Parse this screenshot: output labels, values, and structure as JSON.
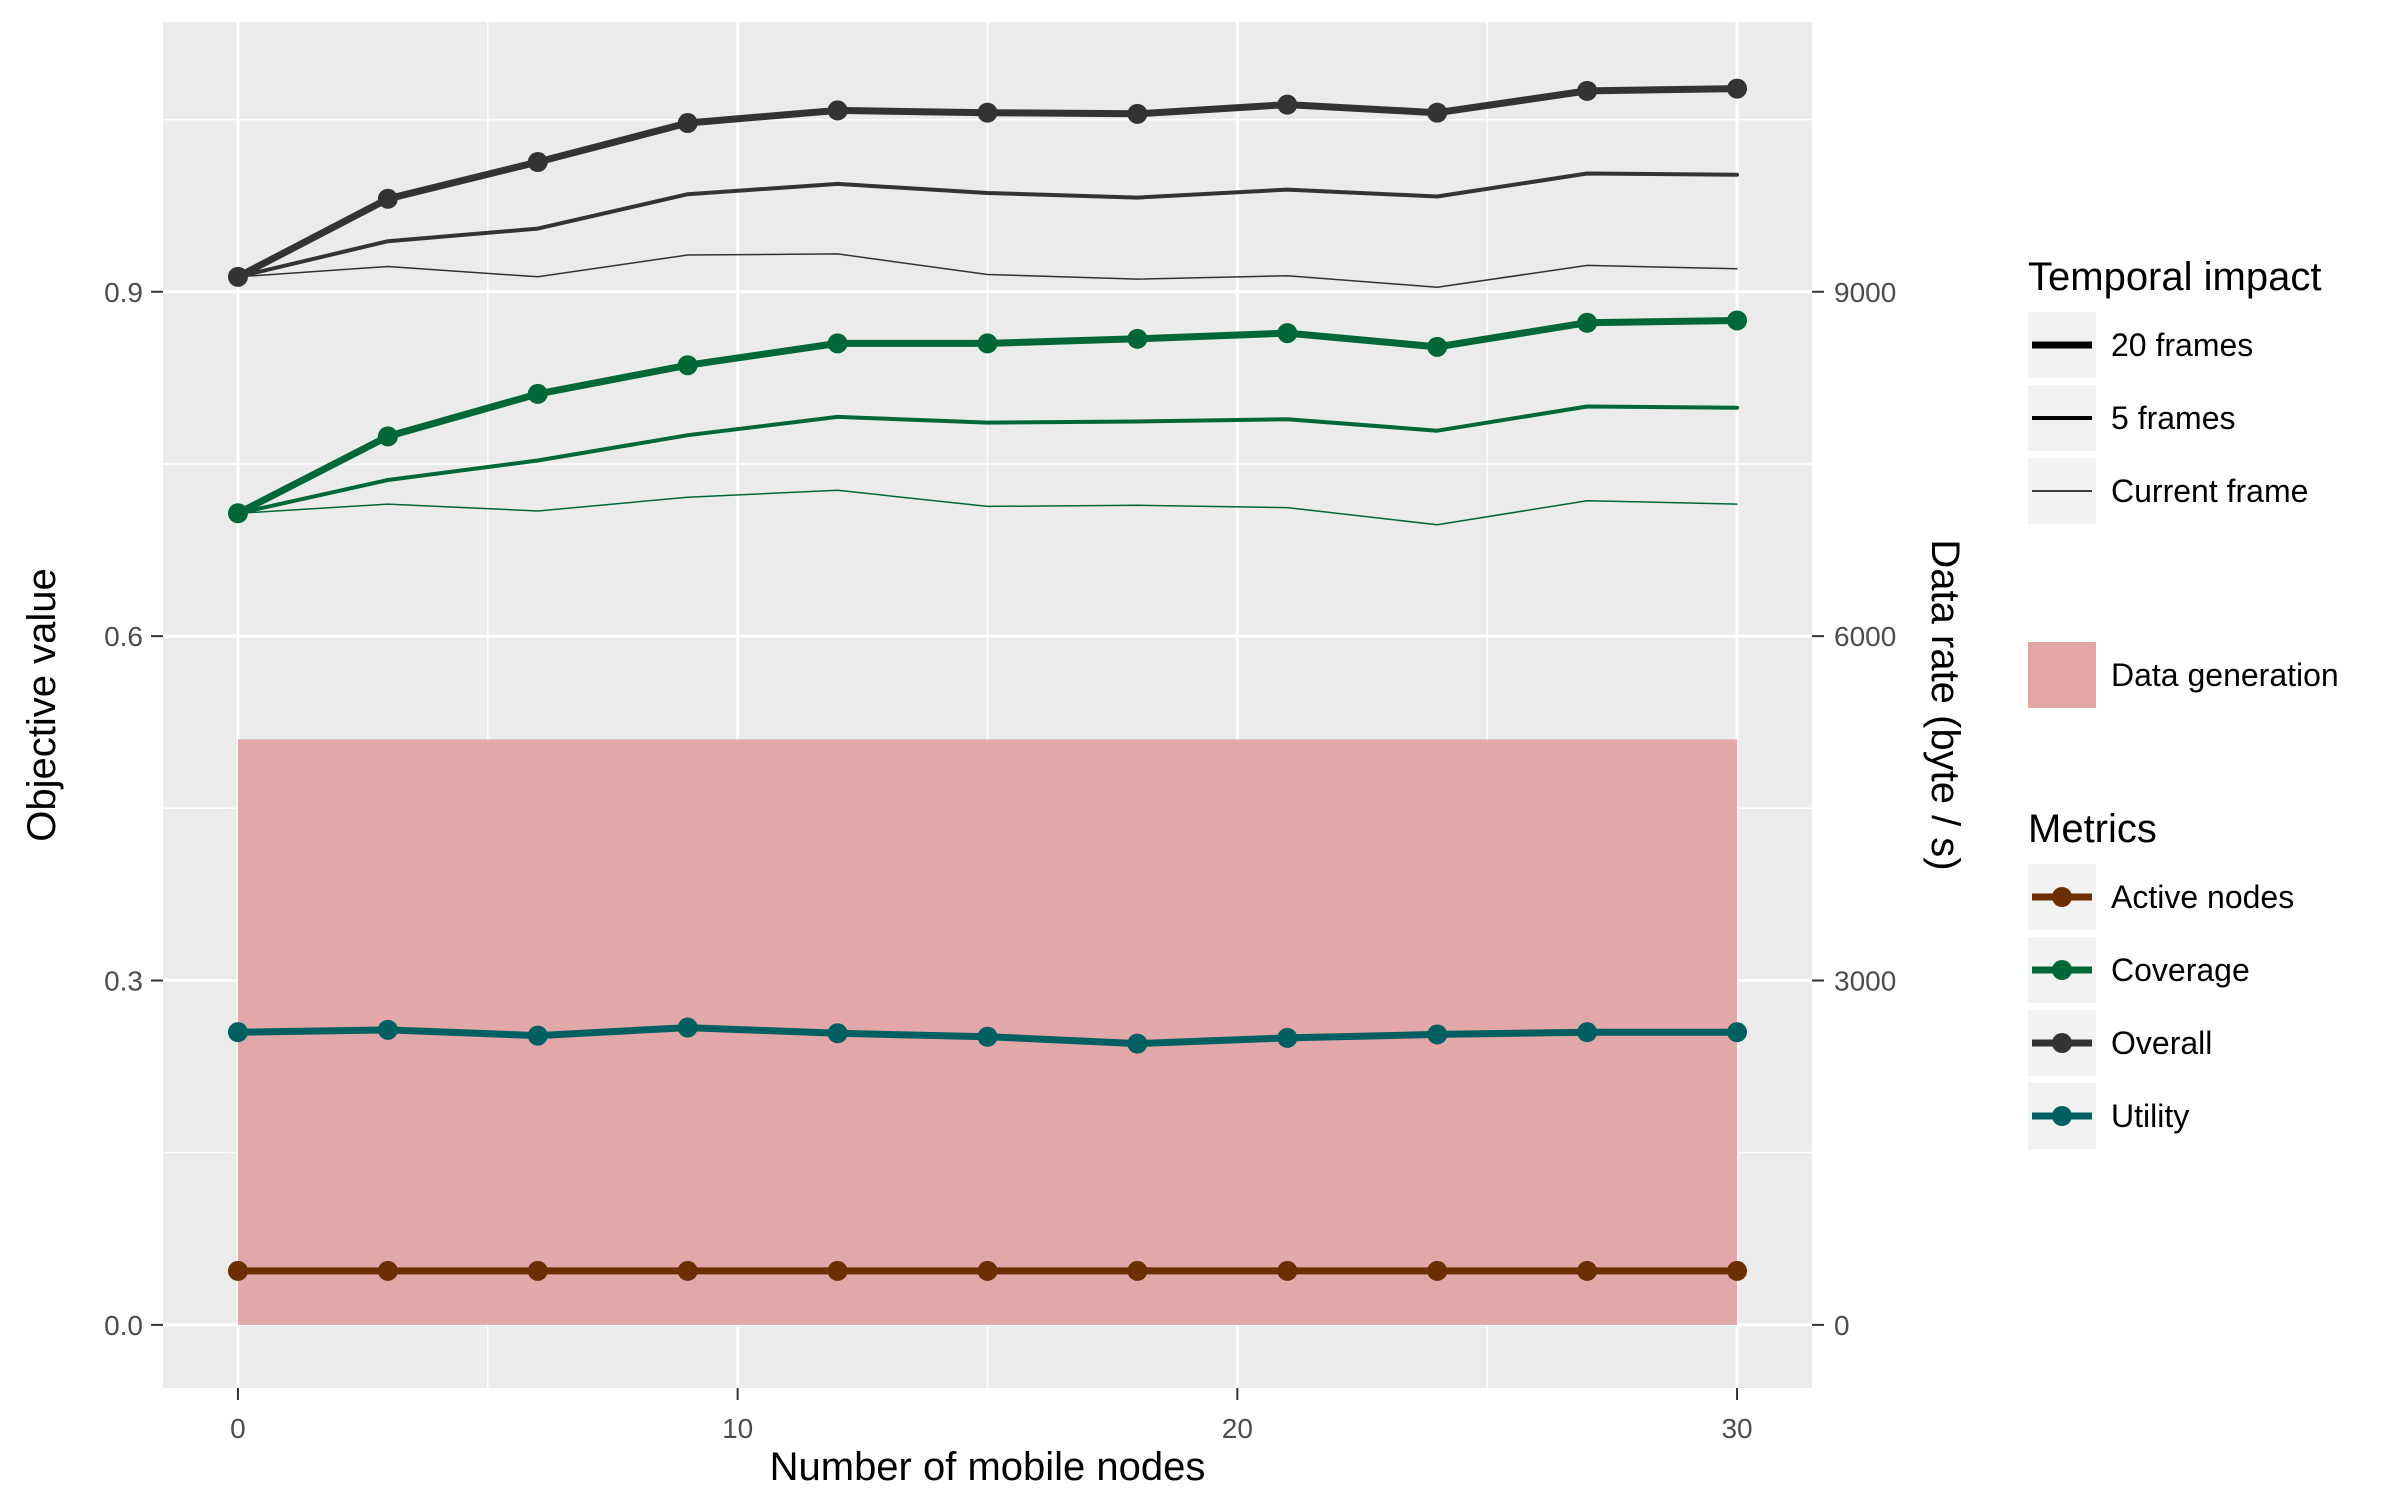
{
  "chart_data": {
    "type": "line",
    "xlabel": "Number of mobile nodes",
    "ylabel": "Objective value",
    "y2label": "Data rate (byte / s)",
    "xlim": [
      -1.5,
      31.5
    ],
    "ylim": [
      -0.055,
      1.135
    ],
    "y2lim": [
      -550,
      11350
    ],
    "x_ticks": [
      0,
      10,
      20,
      30
    ],
    "x_tick_labels": [
      "0",
      "10",
      "20",
      "30"
    ],
    "y_ticks": [
      0.0,
      0.3,
      0.6,
      0.9
    ],
    "y_tick_labels": [
      "0.0",
      "0.3",
      "0.6",
      "0.9"
    ],
    "y2_ticks": [
      0,
      3000,
      6000,
      9000
    ],
    "y2_tick_labels": [
      "0",
      "3000",
      "6000",
      "9000"
    ],
    "grid": true,
    "x": [
      0,
      3,
      6,
      9,
      12,
      15,
      18,
      21,
      24,
      27,
      30
    ],
    "data_generation": {
      "label": "Data generation",
      "color": "#e2a4a5",
      "x_range": [
        0,
        30
      ],
      "value": 5100
    },
    "series": [
      {
        "metric": "Overall",
        "impact": "20 frames",
        "color": "#333333",
        "values": [
          0.913,
          0.981,
          1.013,
          1.047,
          1.058,
          1.056,
          1.055,
          1.063,
          1.056,
          1.075,
          1.077
        ]
      },
      {
        "metric": "Overall",
        "impact": "5 frames",
        "color": "#333333",
        "values": [
          0.913,
          0.944,
          0.955,
          0.985,
          0.994,
          0.986,
          0.982,
          0.989,
          0.983,
          1.003,
          1.002
        ]
      },
      {
        "metric": "Overall",
        "impact": "Current frame",
        "color": "#333333",
        "values": [
          0.913,
          0.922,
          0.913,
          0.932,
          0.933,
          0.915,
          0.911,
          0.914,
          0.904,
          0.923,
          0.92
        ]
      },
      {
        "metric": "Coverage",
        "impact": "20 frames",
        "color": "#006837",
        "values": [
          0.707,
          0.774,
          0.811,
          0.836,
          0.855,
          0.855,
          0.859,
          0.864,
          0.852,
          0.873,
          0.875
        ]
      },
      {
        "metric": "Coverage",
        "impact": "5 frames",
        "color": "#006837",
        "values": [
          0.707,
          0.736,
          0.753,
          0.775,
          0.791,
          0.786,
          0.787,
          0.789,
          0.779,
          0.8,
          0.799
        ]
      },
      {
        "metric": "Coverage",
        "impact": "Current frame",
        "color": "#006837",
        "values": [
          0.707,
          0.715,
          0.709,
          0.721,
          0.727,
          0.713,
          0.714,
          0.712,
          0.697,
          0.718,
          0.715
        ]
      },
      {
        "metric": "Utility",
        "impact": "20 frames",
        "color": "#005f60",
        "values": [
          0.255,
          0.257,
          0.252,
          0.259,
          0.254,
          0.251,
          0.245,
          0.25,
          0.253,
          0.255,
          0.255
        ]
      },
      {
        "metric": "Active nodes",
        "impact": "20 frames",
        "color": "#6b2f02",
        "values": [
          0.047,
          0.047,
          0.047,
          0.047,
          0.047,
          0.047,
          0.047,
          0.047,
          0.047,
          0.047,
          0.047
        ]
      }
    ],
    "legend": {
      "placement": "right",
      "temporal_title": "Temporal impact",
      "temporal_items": [
        {
          "label": "20 frames",
          "width": 7
        },
        {
          "label": "5 frames",
          "width": 4
        },
        {
          "label": "Current frame",
          "width": 1.5
        }
      ],
      "fill_item": {
        "label": "Data generation",
        "color": "#e2a4a5"
      },
      "metrics_title": "Metrics",
      "metrics_items": [
        {
          "label": "Active nodes",
          "color": "#6b2f02"
        },
        {
          "label": "Coverage",
          "color": "#006837"
        },
        {
          "label": "Overall",
          "color": "#333333"
        },
        {
          "label": "Utility",
          "color": "#005f60"
        }
      ]
    },
    "panel_color": "#ebebeb",
    "grid_color": "#ffffff"
  }
}
